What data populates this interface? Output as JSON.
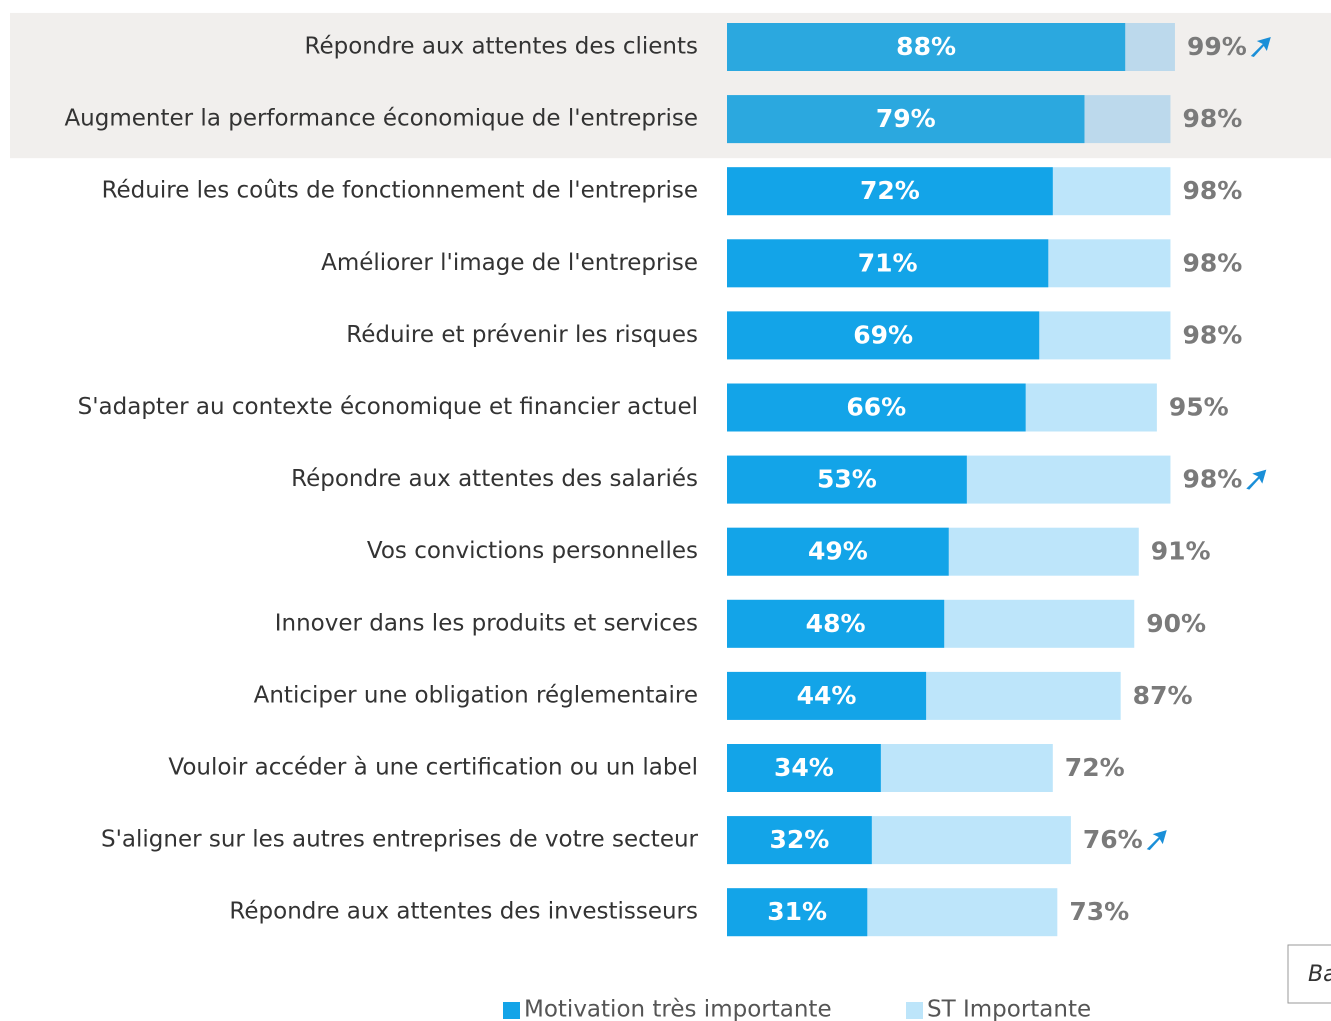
{
  "chart_data": {
    "type": "bar",
    "orientation": "horizontal",
    "overlap": true,
    "categories": [
      "Répondre aux attentes des clients",
      "Augmenter la performance économique de l'entreprise",
      "Réduire les coûts de fonctionnement de l'entreprise",
      "Améliorer l'image de l'entreprise",
      "Réduire et prévenir les risques",
      "S'adapter au contexte économique et financier actuel",
      "Répondre aux attentes des salariés",
      "Vos convictions personnelles",
      "Innover dans les produits et services",
      "Anticiper une obligation réglementaire",
      "Vouloir accéder à une certification ou un label",
      "S'aligner sur les autres entreprises de votre secteur",
      "Répondre aux attentes des investisseurs"
    ],
    "series": [
      {
        "name": "Motivation très importante",
        "color": "#13a4e8",
        "highlight_color": "#2ba8df",
        "values": [
          88,
          79,
          72,
          71,
          69,
          66,
          53,
          49,
          48,
          44,
          34,
          32,
          31
        ],
        "value_labels": [
          "88%",
          "79%",
          "72%",
          "71%",
          "69%",
          "66%",
          "53%",
          "49%",
          "48%",
          "44%",
          "34%",
          "32%",
          "31%"
        ]
      },
      {
        "name": "ST Importante",
        "color": "#bde5fa",
        "highlight_color": "#bcd9ec",
        "values": [
          99,
          98,
          98,
          98,
          98,
          95,
          98,
          91,
          90,
          87,
          72,
          76,
          73
        ],
        "value_labels": [
          "99%",
          "98%",
          "98%",
          "98%",
          "98%",
          "95%",
          "98%",
          "91%",
          "90%",
          "87%",
          "72%",
          "76%",
          "73%"
        ]
      }
    ],
    "up_arrow": [
      true,
      false,
      false,
      false,
      false,
      false,
      true,
      false,
      false,
      false,
      false,
      true,
      false
    ],
    "highlighted": [
      true,
      true,
      false,
      false,
      false,
      false,
      false,
      false,
      false,
      false,
      false,
      false,
      false
    ],
    "xlim": [
      0,
      100
    ],
    "note": "Ba"
  }
}
